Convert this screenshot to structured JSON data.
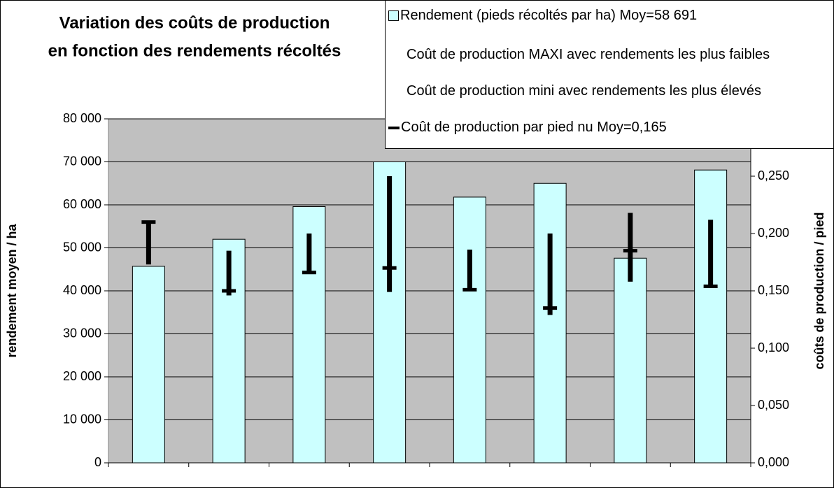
{
  "chart_data": {
    "type": "bar",
    "title": [
      "Variation des coûts de production",
      "en fonction des rendements récoltés"
    ],
    "ylabel": "rendement moyen / ha",
    "y2label": "coûts de production / pied",
    "categories": [
      null,
      null,
      null,
      null,
      null,
      null,
      null,
      null
    ],
    "ylim": [
      0,
      80000
    ],
    "yticks": [
      0,
      {
        "value": 10000,
        "label": "10 000"
      },
      {
        "value": 20000,
        "label": "20 000"
      },
      {
        "value": 30000,
        "label": "30 000"
      },
      {
        "value": 40000,
        "label": "40 000"
      },
      {
        "value": 50000,
        "label": "50 000"
      },
      {
        "value": 60000,
        "label": "60 000"
      },
      {
        "value": 70000,
        "label": "70 000"
      },
      {
        "value": 80000,
        "label": "80 000"
      }
    ],
    "y2lim": [
      0,
      0.3
    ],
    "y2ticks": [
      {
        "value": 0,
        "label": "0,000"
      },
      {
        "value": 0.05,
        "label": "0,050"
      },
      {
        "value": 0.1,
        "label": "0,100"
      },
      {
        "value": 0.15,
        "label": "0,150"
      },
      {
        "value": 0.2,
        "label": "0,200"
      },
      {
        "value": 0.25,
        "label": "0,250"
      }
    ],
    "grid": true,
    "series": [
      {
        "name": "Rendement (pieds récoltés par ha)  Moy=58 691",
        "color": "#ccffff",
        "values": [
          45700,
          52000,
          59600,
          70000,
          61800,
          65000,
          47600,
          68100
        ]
      },
      {
        "name": "Coût de production MAXI avec rendements les plus faibles",
        "color": "#000000",
        "axis": "y2",
        "values": [
          0.21,
          0.185,
          0.2,
          0.25,
          0.186,
          0.2,
          0.218,
          0.212
        ]
      },
      {
        "name": "Coût de production mini avec rendements les plus élevés",
        "color": "#000000",
        "axis": "y2",
        "values": [
          0.173,
          0.146,
          0.166,
          0.149,
          0.151,
          0.129,
          0.158,
          0.153
        ]
      },
      {
        "name": "Coût de production par pied nu Moy=0,165",
        "color": "#000000",
        "axis": "y2",
        "values": [
          0.21,
          0.15,
          0.166,
          0.17,
          0.151,
          0.135,
          0.185,
          0.154
        ]
      }
    ]
  }
}
